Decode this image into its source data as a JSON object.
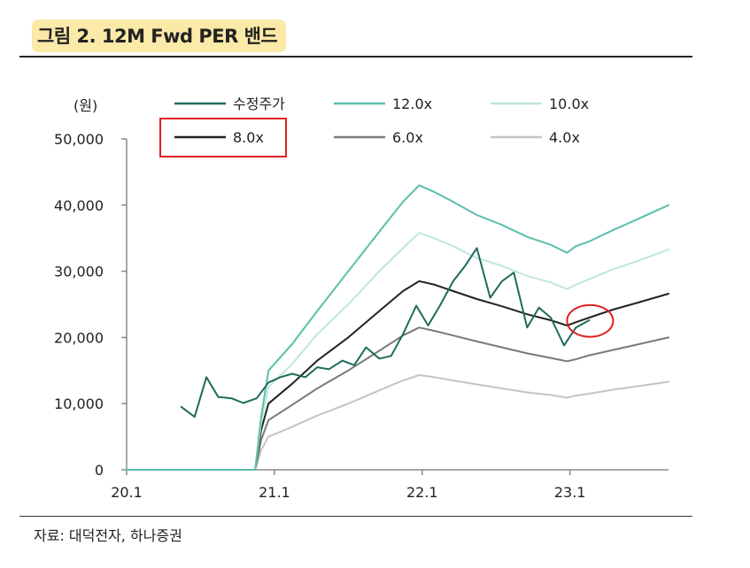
{
  "title": "그림 2. 12M Fwd PER 밴드",
  "source": "자료: 대덕전자, 하나증권",
  "chart_data": {
    "type": "line",
    "ylabel": "(원)",
    "ylim": [
      0,
      50000
    ],
    "yticks": [
      0,
      10000,
      20000,
      30000,
      40000,
      50000
    ],
    "ytick_labels": [
      "0",
      "10,000",
      "20,000",
      "30,000",
      "40,000",
      "50,000"
    ],
    "xlim": [
      2020.0,
      2023.667
    ],
    "xticks": [
      2020.0,
      2021.0,
      2022.0,
      2023.0
    ],
    "xtick_labels": [
      "20.1",
      "21.1",
      "22.1",
      "23.1"
    ],
    "legend_position": "top",
    "highlight_legend_entry": "8.0x",
    "highlight_color": "#e02020",
    "highlight_point": {
      "x": 2023.13,
      "y": 22500
    },
    "series": [
      {
        "name": "수정주가",
        "color": "#1f6b5c",
        "width": 2,
        "x": [
          2020.37,
          2020.46,
          2020.54,
          2020.62,
          2020.71,
          2020.79,
          2020.88,
          2020.96,
          2021.04,
          2021.12,
          2021.21,
          2021.29,
          2021.37,
          2021.46,
          2021.54,
          2021.62,
          2021.71,
          2021.79,
          2021.87,
          2021.96,
          2022.04,
          2022.12,
          2022.21,
          2022.29,
          2022.37,
          2022.46,
          2022.54,
          2022.62,
          2022.71,
          2022.79,
          2022.87,
          2022.96,
          2023.04,
          2023.13
        ],
        "y": [
          9500,
          8000,
          14000,
          11000,
          10800,
          10100,
          10800,
          13200,
          14000,
          14500,
          14000,
          15500,
          15200,
          16500,
          15800,
          18500,
          16800,
          17200,
          20500,
          24800,
          21800,
          24800,
          28500,
          30800,
          33500,
          26000,
          28500,
          29800,
          21500,
          24500,
          23000,
          18800,
          21500,
          22600
        ]
      },
      {
        "name": "12.0x",
        "color": "#5bbfac",
        "width": 2,
        "x": [
          2020.0,
          2020.87,
          2020.91,
          2020.96,
          2021.12,
          2021.29,
          2021.5,
          2021.71,
          2021.87,
          2021.98,
          2022.08,
          2022.21,
          2022.37,
          2022.54,
          2022.71,
          2022.87,
          2022.98,
          2023.04,
          2023.13,
          2023.29,
          2023.45,
          2023.667
        ],
        "y": [
          0,
          0,
          8000,
          15000,
          19000,
          24000,
          30000,
          36000,
          40500,
          43000,
          42000,
          40500,
          38500,
          37000,
          35200,
          34000,
          32800,
          33800,
          34500,
          36200,
          37800,
          40000
        ]
      },
      {
        "name": "10.0x",
        "color": "#bfe6df",
        "width": 2,
        "x": [
          2020.0,
          2020.87,
          2020.91,
          2020.96,
          2021.12,
          2021.29,
          2021.5,
          2021.71,
          2021.87,
          2021.98,
          2022.08,
          2022.21,
          2022.37,
          2022.54,
          2022.71,
          2022.87,
          2022.98,
          2023.04,
          2023.13,
          2023.29,
          2023.45,
          2023.667
        ],
        "y": [
          0,
          0,
          7000,
          12500,
          16000,
          20500,
          25000,
          30000,
          33500,
          35800,
          35000,
          33800,
          32000,
          30800,
          29300,
          28300,
          27300,
          28000,
          28800,
          30300,
          31500,
          33300
        ]
      },
      {
        "name": "8.0x",
        "color": "#222222",
        "width": 2,
        "x": [
          2020.0,
          2020.87,
          2020.91,
          2020.96,
          2021.12,
          2021.29,
          2021.5,
          2021.71,
          2021.87,
          2021.98,
          2022.08,
          2022.21,
          2022.37,
          2022.54,
          2022.71,
          2022.87,
          2022.98,
          2023.04,
          2023.13,
          2023.29,
          2023.45,
          2023.667
        ],
        "y": [
          0,
          0,
          6000,
          10000,
          13000,
          16500,
          20000,
          24000,
          27000,
          28500,
          28000,
          27000,
          25800,
          24700,
          23500,
          22600,
          21800,
          22300,
          23000,
          24200,
          25200,
          26600
        ]
      },
      {
        "name": "6.0x",
        "color": "#7a7a7a",
        "width": 2,
        "x": [
          2020.0,
          2020.87,
          2020.91,
          2020.96,
          2021.12,
          2021.29,
          2021.5,
          2021.71,
          2021.87,
          2021.98,
          2022.08,
          2022.21,
          2022.37,
          2022.54,
          2022.71,
          2022.87,
          2022.98,
          2023.04,
          2023.13,
          2023.29,
          2023.45,
          2023.667
        ],
        "y": [
          0,
          0,
          4500,
          7500,
          9800,
          12300,
          15000,
          18000,
          20300,
          21500,
          21000,
          20300,
          19400,
          18500,
          17600,
          16900,
          16400,
          16700,
          17300,
          18100,
          18900,
          20000
        ]
      },
      {
        "name": "4.0x",
        "color": "#c4c4c4",
        "width": 2,
        "x": [
          2020.0,
          2020.87,
          2020.91,
          2020.96,
          2021.12,
          2021.29,
          2021.5,
          2021.71,
          2021.87,
          2021.98,
          2022.08,
          2022.21,
          2022.37,
          2022.54,
          2022.71,
          2022.87,
          2022.98,
          2023.04,
          2023.13,
          2023.29,
          2023.45,
          2023.667
        ],
        "y": [
          0,
          0,
          3000,
          5000,
          6500,
          8200,
          10000,
          12000,
          13500,
          14300,
          14000,
          13500,
          12900,
          12300,
          11700,
          11300,
          10900,
          11200,
          11500,
          12100,
          12600,
          13300
        ]
      }
    ]
  }
}
